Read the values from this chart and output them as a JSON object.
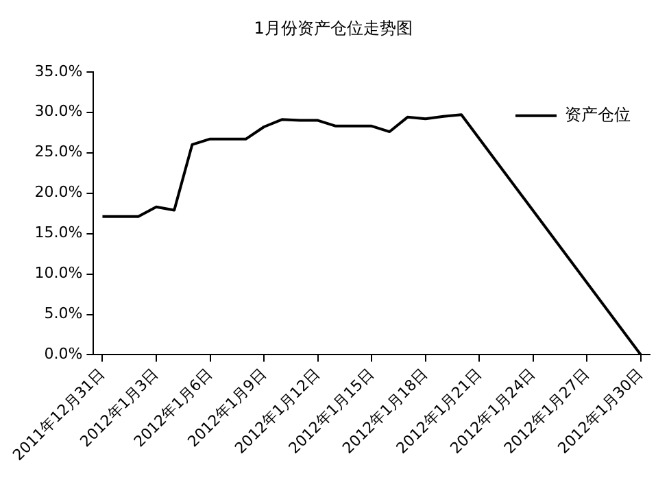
{
  "chart_data": {
    "type": "line",
    "title": "1月份资产仓位走势图",
    "x": [
      "2011-12-31",
      "2012-01-01",
      "2012-01-02",
      "2012-01-03",
      "2012-01-04",
      "2012-01-05",
      "2012-01-06",
      "2012-01-07",
      "2012-01-08",
      "2012-01-09",
      "2012-01-10",
      "2012-01-11",
      "2012-01-12",
      "2012-01-13",
      "2012-01-14",
      "2012-01-15",
      "2012-01-16",
      "2012-01-17",
      "2012-01-18",
      "2012-01-19",
      "2012-01-20",
      "2012-01-30"
    ],
    "series": [
      {
        "name": "资产仓位",
        "color": "#000000",
        "values": [
          17.1,
          17.1,
          17.1,
          18.3,
          17.9,
          26.0,
          26.7,
          26.7,
          26.7,
          28.2,
          29.1,
          29.0,
          29.0,
          28.3,
          28.3,
          28.3,
          27.6,
          29.4,
          29.2,
          29.5,
          29.7,
          0.0
        ]
      }
    ],
    "xlim": [
      "2011-12-30T12:00",
      "2012-01-30T12:00"
    ],
    "xticks": [
      {
        "value": "2011-12-31",
        "label": "2011年12月31日"
      },
      {
        "value": "2012-01-03",
        "label": "2012年1月3日"
      },
      {
        "value": "2012-01-06",
        "label": "2012年1月6日"
      },
      {
        "value": "2012-01-09",
        "label": "2012年1月9日"
      },
      {
        "value": "2012-01-12",
        "label": "2012年1月12日"
      },
      {
        "value": "2012-01-15",
        "label": "2012年1月15日"
      },
      {
        "value": "2012-01-18",
        "label": "2012年1月18日"
      },
      {
        "value": "2012-01-21",
        "label": "2012年1月21日"
      },
      {
        "value": "2012-01-24",
        "label": "2012年1月24日"
      },
      {
        "value": "2012-01-27",
        "label": "2012年1月27日"
      },
      {
        "value": "2012-01-30",
        "label": "2012年1月30日"
      }
    ],
    "ylim": [
      0,
      35
    ],
    "yticks": [
      {
        "value": 0,
        "label": "0.0%"
      },
      {
        "value": 5,
        "label": "5.0%"
      },
      {
        "value": 10,
        "label": "10.0%"
      },
      {
        "value": 15,
        "label": "15.0%"
      },
      {
        "value": 20,
        "label": "20.0%"
      },
      {
        "value": 25,
        "label": "25.0%"
      },
      {
        "value": 30,
        "label": "30.0%"
      },
      {
        "value": 35,
        "label": "35.0%"
      }
    ],
    "grid": false,
    "legend": "top right",
    "marker": "none",
    "line_style": "solid"
  }
}
